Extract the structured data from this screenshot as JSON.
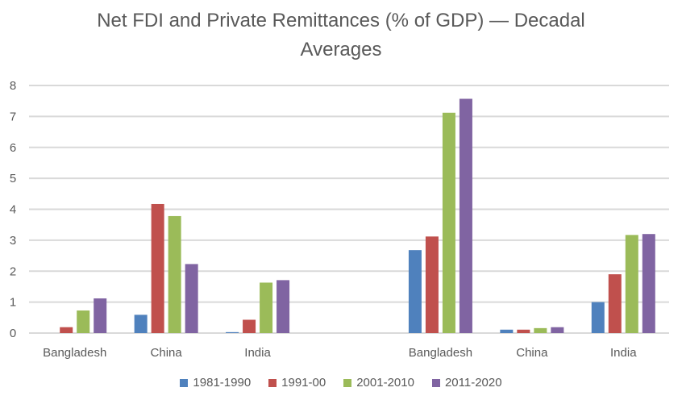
{
  "chart_data": {
    "type": "bar",
    "title_line1": "Net FDI and Private Remittances (% of GDP) —   Decadal",
    "title_line2": "Averages",
    "categories": [
      "Bangladesh",
      "China",
      "India",
      "",
      "Bangladesh",
      "China",
      "India"
    ],
    "series": [
      {
        "name": "1981-1990",
        "color": "#4F81BD",
        "values": [
          0,
          0.59,
          0.03,
          null,
          2.68,
          0.11,
          1.0
        ]
      },
      {
        "name": "1991-00",
        "color": "#C0504D",
        "values": [
          0.19,
          4.17,
          0.43,
          null,
          3.12,
          0.11,
          1.9
        ]
      },
      {
        "name": "2001-2010",
        "color": "#9BBB59",
        "values": [
          0.73,
          3.78,
          1.63,
          null,
          7.12,
          0.16,
          3.17
        ]
      },
      {
        "name": "2011-2020",
        "color": "#8064A2",
        "values": [
          1.12,
          2.23,
          1.71,
          null,
          7.57,
          0.19,
          3.2
        ]
      }
    ],
    "yticks": [
      "0",
      "1",
      "2",
      "3",
      "4",
      "5",
      "6",
      "7",
      "8"
    ],
    "ylim": [
      0,
      8
    ],
    "xlabel": "",
    "ylabel": "",
    "grid": true,
    "legend_position": "bottom"
  }
}
